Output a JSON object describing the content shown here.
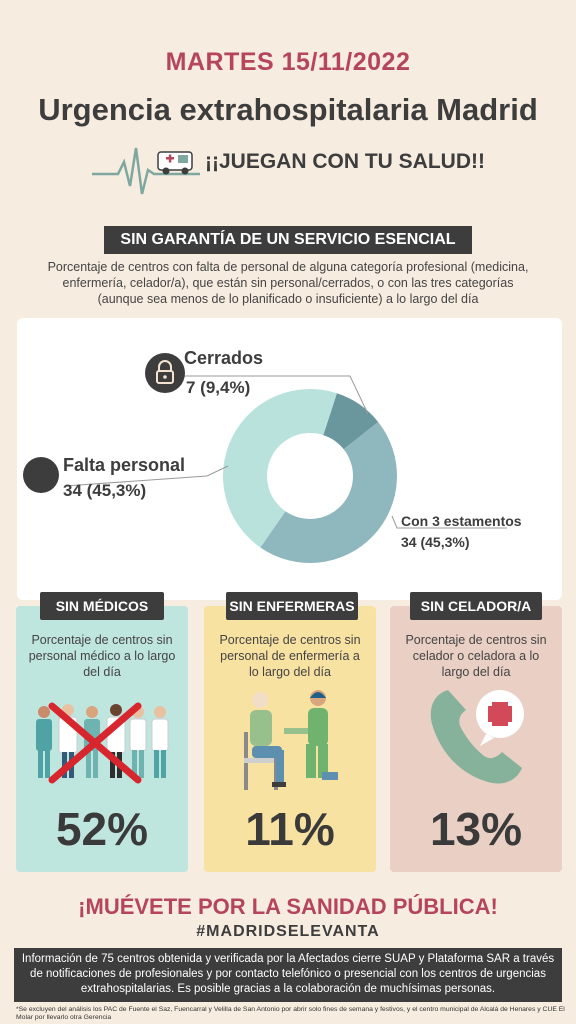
{
  "header": {
    "date": "MARTES 15/11/2022",
    "title": "Urgencia extrahospitalaria Madrid",
    "tagline": "¡¡JUEGAN CON TU SALUD!!"
  },
  "section": {
    "banner": "SIN GARANTÍA DE UN SERVICIO  ESENCIAL",
    "description": "Porcentaje de centros con falta de personal de alguna categoría profesional (medicina, enfermería, celador/a), que están sin personal/cerrados, o con las tres categorías (aunque sea menos de lo planificado o insuficiente) a lo largo del día"
  },
  "chart_data": {
    "type": "pie",
    "categories": [
      "Cerrados",
      "Falta personal",
      "Con 3 estamentos"
    ],
    "values": [
      7,
      34,
      34
    ],
    "value_labels": [
      "7 (9,4%)",
      "34 (45,3%)",
      "34 (45,3%)"
    ],
    "colors": [
      "#6a969e",
      "#8fb8be",
      "#b9e2dc"
    ]
  },
  "cards": [
    {
      "tag": "SIN MÉDICOS",
      "description": "Porcentaje de centros sin personal médico a lo largo del día",
      "value": "52%",
      "bg": "#bfe5df"
    },
    {
      "tag": "SIN ENFERMERAS",
      "description": "Porcentaje de centros sin personal de enfermería a lo largo del día",
      "value": "11%",
      "bg": "#f8e2a2"
    },
    {
      "tag": "SIN CELADOR/A",
      "description": "Porcentaje de centros sin celador o celadora a lo largo del día",
      "value": "13%",
      "bg": "#e9cfc4"
    }
  ],
  "footer": {
    "cta": "¡MUÉVETE POR LA SANIDAD PÚBLICA!",
    "hashtag": "#MADRIDSELEVANTA",
    "info": "Información de 75 centros obtenida y verificada por la Afectados cierre SUAP y Plataforma SAR a través de notificaciones de profesionales y por contacto telefónico o presencial con los centros de urgencias extrahospitalarias. Es posible gracias a la colaboración de muchísimas personas.",
    "footnote": "*Se excluyen del análisis los PAC de Fuente el Saz, Fuencarral y Velilla de San Antonio por abrir solo fines de semana y festivos, y el centro municipal de Alcalá de Henares y CUE El Molar por llevarlo otra Gerencia"
  },
  "colors": {
    "accent": "#b5455a",
    "dark": "#3d3d3d",
    "background": "#f7ece0"
  }
}
